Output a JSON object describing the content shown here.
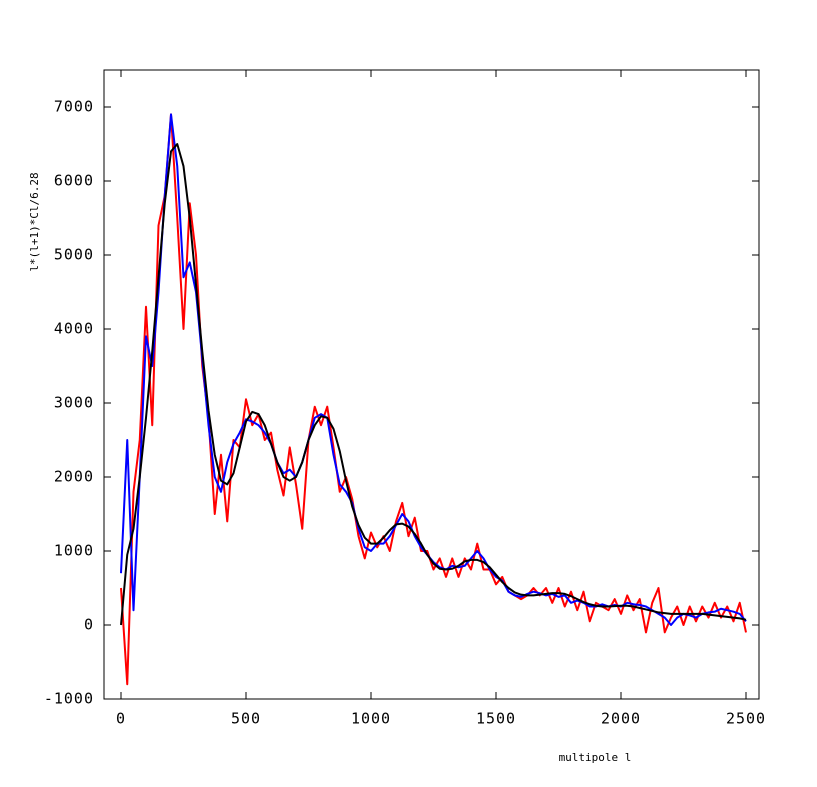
{
  "chart_data": {
    "type": "line",
    "xlabel": "multipole l",
    "ylabel": "l*(l+1)*Cl/6.28",
    "xlim": [
      -68,
      2552
    ],
    "ylim": [
      -1000,
      7500
    ],
    "xticks": [
      0,
      500,
      1000,
      1500,
      2000,
      2500
    ],
    "yticks": [
      -1000,
      0,
      1000,
      2000,
      3000,
      4000,
      5000,
      6000,
      7000
    ],
    "x": [
      0,
      25,
      50,
      75,
      100,
      125,
      150,
      175,
      200,
      225,
      250,
      275,
      300,
      325,
      350,
      375,
      400,
      425,
      450,
      475,
      500,
      525,
      550,
      575,
      600,
      625,
      650,
      675,
      700,
      725,
      750,
      775,
      800,
      825,
      850,
      875,
      900,
      925,
      950,
      975,
      1000,
      1025,
      1050,
      1075,
      1100,
      1125,
      1150,
      1175,
      1200,
      1225,
      1250,
      1275,
      1300,
      1325,
      1350,
      1375,
      1400,
      1425,
      1450,
      1475,
      1500,
      1525,
      1550,
      1575,
      1600,
      1625,
      1650,
      1675,
      1700,
      1725,
      1750,
      1775,
      1800,
      1825,
      1850,
      1875,
      1900,
      1925,
      1950,
      1975,
      2000,
      2025,
      2050,
      2075,
      2100,
      2125,
      2150,
      2175,
      2200,
      2225,
      2250,
      2275,
      2300,
      2325,
      2350,
      2375,
      2400,
      2425,
      2450,
      2475,
      2500
    ],
    "series": [
      {
        "color": "#ff0000",
        "values": [
          500,
          -800,
          1800,
          2500,
          4300,
          2700,
          5400,
          5800,
          6900,
          5500,
          4000,
          5700,
          5000,
          3500,
          2800,
          1500,
          2300,
          1400,
          2500,
          2400,
          3050,
          2700,
          2850,
          2500,
          2600,
          2100,
          1750,
          2400,
          1900,
          1300,
          2500,
          2950,
          2700,
          2950,
          2400,
          1800,
          2000,
          1700,
          1200,
          900,
          1250,
          1050,
          1200,
          1000,
          1400,
          1650,
          1200,
          1450,
          1000,
          1000,
          750,
          900,
          650,
          900,
          650,
          900,
          750,
          1100,
          750,
          750,
          550,
          650,
          450,
          400,
          350,
          400,
          500,
          400,
          500,
          300,
          500,
          250,
          450,
          200,
          450,
          50,
          300,
          250,
          200,
          350,
          150,
          400,
          200,
          350,
          -100,
          300,
          500,
          -100,
          100,
          250,
          0,
          250,
          50,
          250,
          100,
          300,
          100,
          250,
          50,
          300,
          -100
        ]
      },
      {
        "color": "#0000ff",
        "values": [
          700,
          2500,
          200,
          2000,
          3900,
          3500,
          4500,
          5800,
          6900,
          6200,
          4700,
          4900,
          4500,
          3600,
          2700,
          2000,
          1800,
          2200,
          2450,
          2600,
          2780,
          2750,
          2700,
          2600,
          2450,
          2200,
          2050,
          2100,
          2000,
          2200,
          2500,
          2800,
          2850,
          2800,
          2300,
          1900,
          1800,
          1650,
          1300,
          1050,
          1000,
          1100,
          1100,
          1200,
          1350,
          1500,
          1400,
          1200,
          1050,
          950,
          850,
          780,
          750,
          800,
          780,
          800,
          900,
          1000,
          900,
          750,
          650,
          600,
          450,
          400,
          380,
          420,
          450,
          430,
          400,
          420,
          380,
          400,
          300,
          330,
          300,
          250,
          250,
          280,
          250,
          270,
          250,
          300,
          280,
          270,
          250,
          200,
          150,
          100,
          0,
          100,
          150,
          130,
          100,
          150,
          170,
          180,
          220,
          200,
          180,
          150,
          50
        ]
      },
      {
        "color": "#000000",
        "values": [
          0,
          950,
          1300,
          2000,
          2800,
          3700,
          4700,
          5700,
          6400,
          6500,
          6200,
          5500,
          4600,
          3700,
          2900,
          2300,
          1950,
          1900,
          2050,
          2400,
          2750,
          2880,
          2850,
          2700,
          2450,
          2200,
          2000,
          1950,
          2000,
          2200,
          2500,
          2700,
          2820,
          2800,
          2650,
          2350,
          1950,
          1600,
          1350,
          1180,
          1100,
          1100,
          1180,
          1280,
          1360,
          1370,
          1330,
          1230,
          1100,
          950,
          830,
          760,
          750,
          760,
          800,
          860,
          880,
          880,
          850,
          780,
          680,
          580,
          500,
          440,
          410,
          400,
          400,
          410,
          420,
          430,
          430,
          420,
          390,
          350,
          310,
          280,
          260,
          250,
          250,
          255,
          260,
          260,
          250,
          230,
          210,
          190,
          170,
          160,
          150,
          150,
          150,
          150,
          150,
          150,
          140,
          130,
          120,
          110,
          100,
          90,
          70
        ]
      }
    ]
  }
}
